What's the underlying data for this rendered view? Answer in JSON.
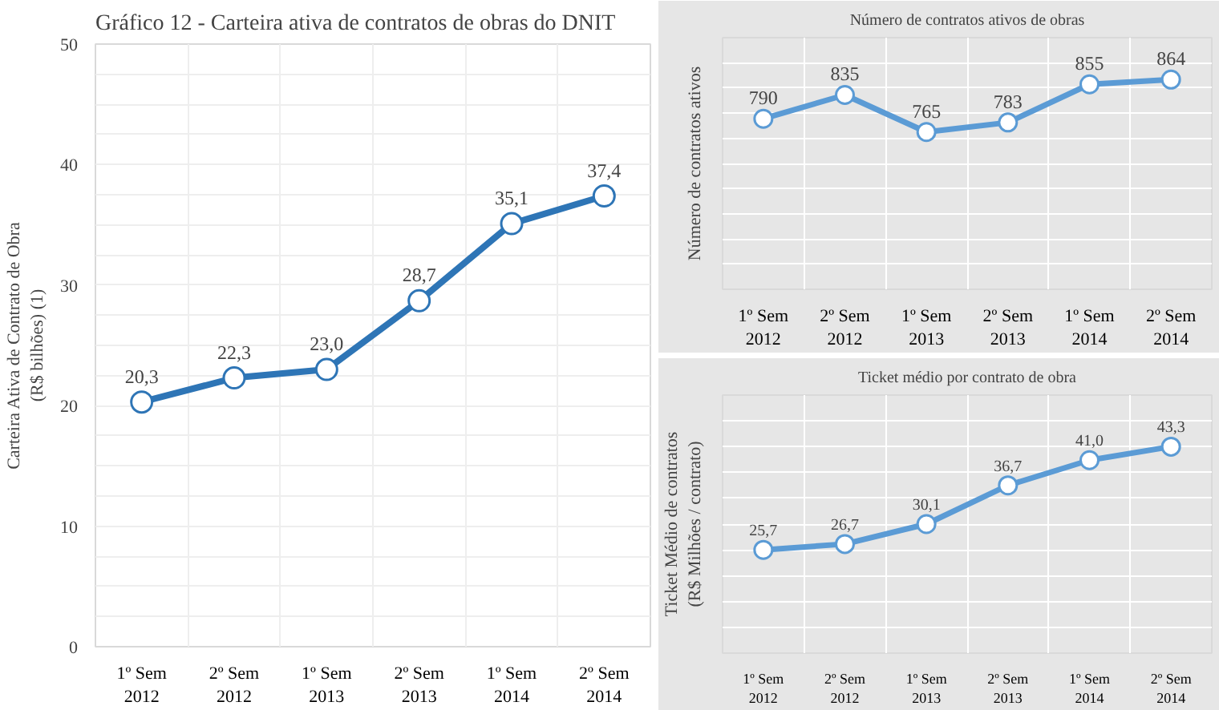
{
  "chart_data": [
    {
      "type": "line",
      "title": "Gráfico 12 - Carteira ativa de contratos de obras do DNIT",
      "ylabel": "Carteira Ativa de Contrato de Obra\n(R$ bilhões) (1)",
      "categories": [
        "1º Sem\n2012",
        "2º Sem\n2012",
        "1º Sem\n2013",
        "2º Sem\n2013",
        "1º Sem\n2014",
        "2º Sem\n2014"
      ],
      "series": [
        {
          "color": "#2e75b6",
          "values": [
            20.3,
            22.3,
            23.0,
            28.7,
            35.1,
            37.4
          ],
          "value_labels": [
            "20,3",
            "22,3",
            "23,0",
            "28,7",
            "35,1",
            "37,4"
          ]
        }
      ],
      "ylim": [
        0,
        50
      ],
      "yticks": [
        0,
        10,
        20,
        30,
        40,
        50
      ],
      "grid": true,
      "marker": "circle"
    },
    {
      "type": "line",
      "title": "Número de contratos ativos de obras",
      "ylabel": "Número de contratos ativos",
      "categories": [
        "1º Sem\n2012",
        "2º Sem\n2012",
        "1º Sem\n2013",
        "2º Sem\n2013",
        "1º Sem\n2014",
        "2º Sem\n2014"
      ],
      "series": [
        {
          "color": "#5b9bd5",
          "values": [
            790,
            835,
            765,
            783,
            855,
            864
          ]
        }
      ],
      "data_labels": true,
      "tick_labels": "x",
      "grid": true,
      "marker": "circle"
    },
    {
      "type": "line",
      "title": "Ticket médio por contrato de obra",
      "ylabel": "Ticket Médio de contratos\n(R$ Milhões / contrato)",
      "categories": [
        "1º Sem\n2012",
        "2º Sem\n2012",
        "1º Sem\n2013",
        "2º Sem\n2013",
        "1º Sem\n2014",
        "2º Sem\n2014"
      ],
      "series": [
        {
          "color": "#5b9bd5",
          "values": [
            25.7,
            26.7,
            30.1,
            36.7,
            41.0,
            43.3
          ],
          "value_labels": [
            "25,7",
            "26,7",
            "30,1",
            "36,7",
            "41,0",
            "43,3"
          ]
        }
      ],
      "tick_labels": "x",
      "grid": true,
      "marker": "circle"
    }
  ]
}
